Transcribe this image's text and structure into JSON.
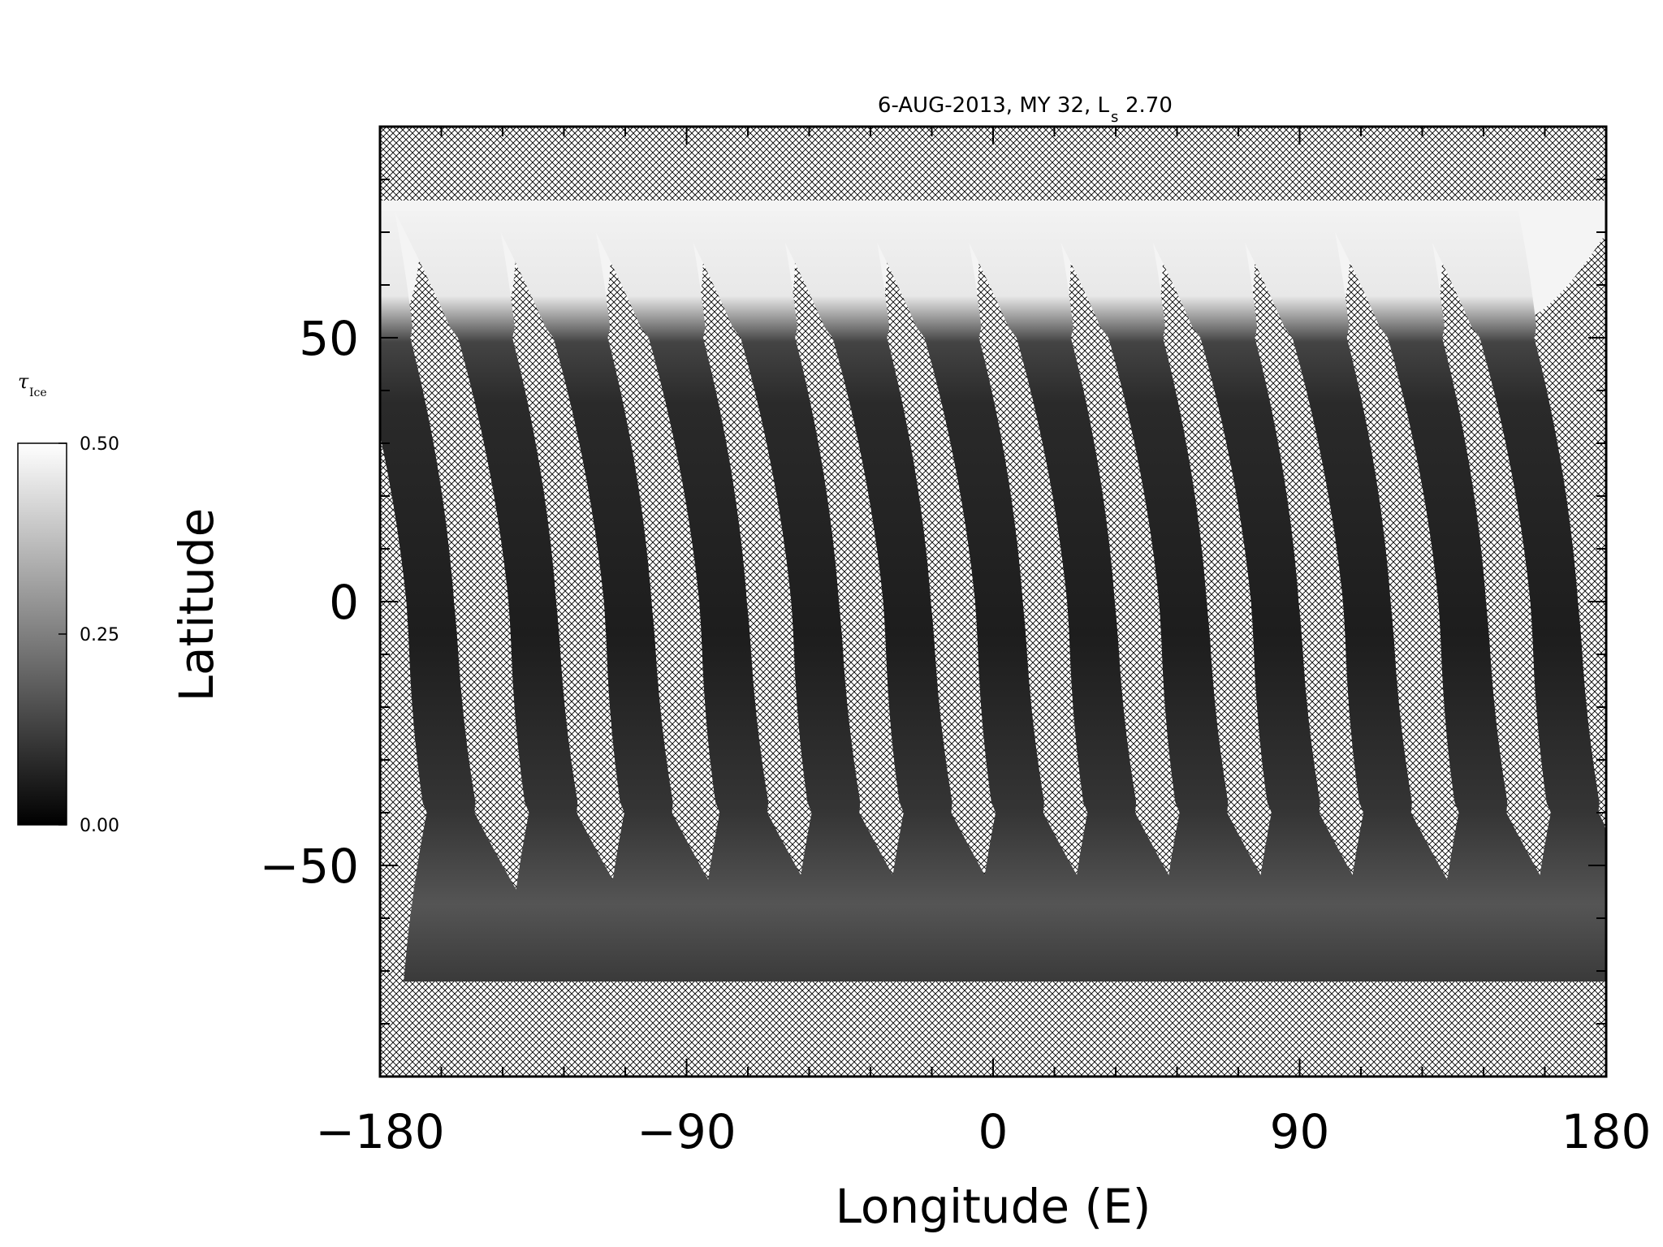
{
  "chart_data": {
    "type": "heatmap",
    "title": "6-AUG-2013, MY 32,  L",
    "title_sub": "s",
    "title_value": "2.70",
    "xlabel": "Longitude (E)",
    "ylabel": "Latitude",
    "xlim": [
      -180,
      180
    ],
    "ylim": [
      -90,
      90
    ],
    "x_ticks": [
      {
        "value": -180,
        "label": "−180"
      },
      {
        "value": -90,
        "label": "−90"
      },
      {
        "value": 0,
        "label": "0"
      },
      {
        "value": 90,
        "label": "90"
      },
      {
        "value": 180,
        "label": "180"
      }
    ],
    "y_ticks": [
      {
        "value": 50,
        "label": "50"
      },
      {
        "value": 0,
        "label": "0"
      },
      {
        "value": -50,
        "label": "−50"
      }
    ],
    "x_minor_step": 18,
    "y_minor_step": 10,
    "colorbar": {
      "title": "τ",
      "title_sub": "Ice",
      "min": 0.0,
      "max": 0.5,
      "ticks": [
        {
          "value": 0.5,
          "label": "0.50"
        },
        {
          "value": 0.25,
          "label": "0.25"
        },
        {
          "value": 0.0,
          "label": "0.00"
        }
      ],
      "colormap": "grayscale"
    },
    "coverage": {
      "valid_lat_range": [
        -72,
        76
      ],
      "polar_cap_lat_range": [
        54,
        76
      ],
      "polar_cap_value": 0.5,
      "typical_swath_value": 0.05,
      "swath_equator_longitudes": [
        -165,
        -135,
        -107,
        -79,
        -52,
        -25,
        2,
        29,
        56,
        83,
        110,
        138,
        165
      ],
      "swath_tilt_deg": 20,
      "no_data_pattern": "crosshatch"
    }
  }
}
